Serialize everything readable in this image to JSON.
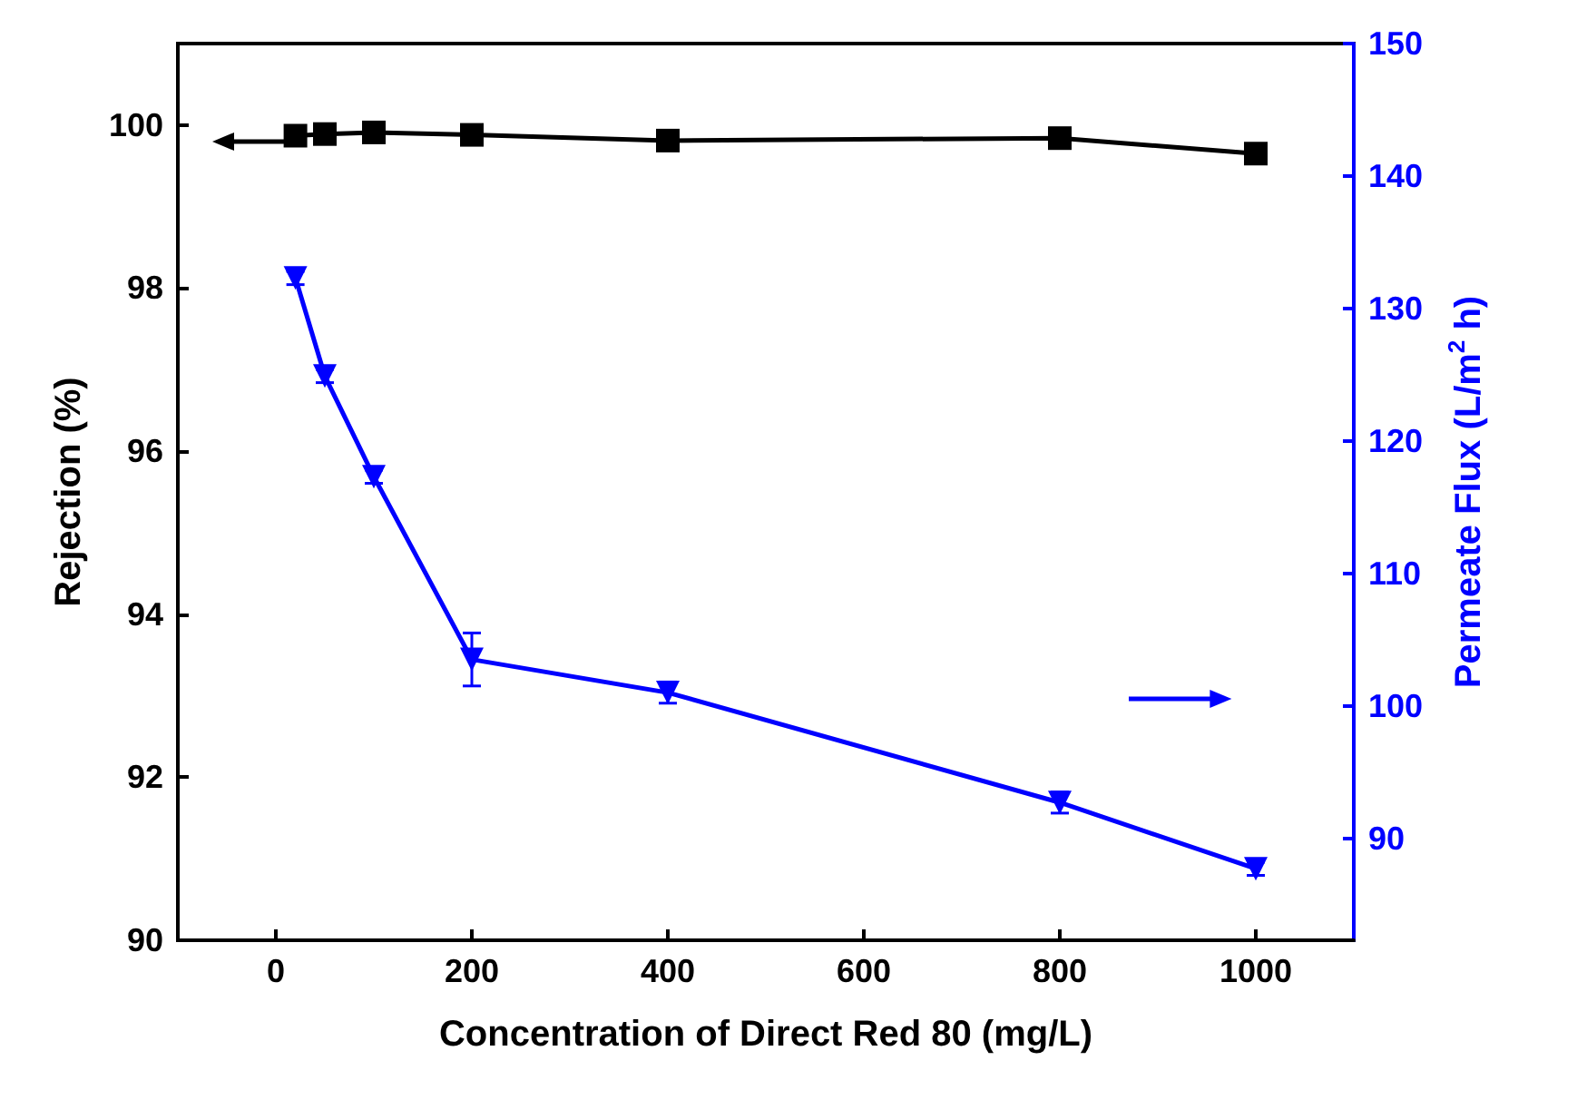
{
  "chart_data": {
    "type": "line",
    "xlabel": "Concentration of Direct Red 80 (mg/L)",
    "ylabel": "Rejection (%)",
    "y2label": "Permeate Flux (L/m$^{2}$ h)",
    "x": [
      20,
      50,
      100,
      200,
      400,
      800,
      1000
    ],
    "series": [
      {
        "color": "#000000",
        "marker": "square",
        "values": [
          99.87,
          99.89,
          99.91,
          99.88,
          99.81,
          99.84,
          99.65
        ]
      },
      {
        "color": "#0000ff",
        "marker": "triangle",
        "axis": "y2",
        "values": [
          132.3,
          124.9,
          117.3,
          103.5,
          101.0,
          92.7,
          87.7
        ],
        "errors": [
          0.5,
          0.5,
          0.5,
          2,
          0.8,
          0.8,
          0.5
        ]
      }
    ],
    "xlim": [
      -100,
      1100
    ],
    "xticks": [
      0,
      200,
      400,
      600,
      800,
      1000
    ],
    "ylim": [
      90,
      101
    ],
    "yticks": [
      90,
      92,
      94,
      96,
      98,
      100
    ],
    "y2lim": [
      82.3,
      150
    ],
    "y2ticks": [
      90,
      100,
      110,
      120,
      130,
      140,
      150
    ],
    "line_style": "solid",
    "grid": false
  }
}
